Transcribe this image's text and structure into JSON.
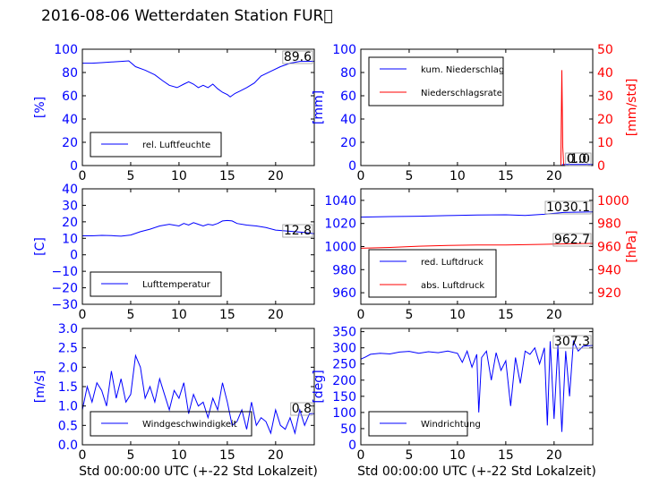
{
  "title": "2016-08-06 Wetterdaten Station FUR\u0000",
  "chart_data": [
    {
      "type": "line",
      "panel": "humidity",
      "ylabel": "[%]",
      "xlim": [
        0,
        24
      ],
      "ylim": [
        0,
        100
      ],
      "xticks": [
        "0",
        "5",
        "10",
        "15",
        "20"
      ],
      "yticks": [
        "0",
        "20",
        "40",
        "60",
        "80",
        "100"
      ],
      "legend_position": "lower-left",
      "last_value_label": "89.6",
      "series": [
        {
          "name": "rel. Luftfeuchte",
          "color": "#0000ff",
          "x": [
            0,
            1,
            2,
            3,
            4,
            4.8,
            5.5,
            6.5,
            7.5,
            8.3,
            9,
            9.8,
            10.5,
            11,
            11.5,
            12,
            12.5,
            13,
            13.5,
            14,
            14.5,
            15,
            15.3,
            15.8,
            16.3,
            17,
            17.8,
            18.5,
            19.5,
            20.5,
            21.5,
            22.5,
            24
          ],
          "values": [
            88,
            88,
            88.5,
            89,
            89.5,
            90,
            85,
            82,
            78,
            73,
            69,
            67,
            70,
            72,
            70,
            67,
            69,
            67,
            70,
            66,
            63,
            61,
            59,
            62,
            64,
            67,
            71,
            77,
            81,
            85,
            88,
            89.5,
            89.6
          ]
        }
      ]
    },
    {
      "type": "line",
      "panel": "precipitation",
      "ylabel": "[mm]",
      "ylabel2": "[mm/std]",
      "xlim": [
        0,
        24
      ],
      "ylim": [
        0,
        100
      ],
      "ylim2": [
        0,
        50
      ],
      "xticks": [
        "0",
        "5",
        "10",
        "15",
        "20"
      ],
      "yticks": [
        "0",
        "20",
        "40",
        "60",
        "80",
        "100"
      ],
      "yticks2": [
        "0",
        "10",
        "20",
        "30",
        "40",
        "50"
      ],
      "legend_position": "upper-left",
      "last_value_labels": [
        "1.0",
        "0.0"
      ],
      "series": [
        {
          "name": "kum. Niederschlag",
          "color": "#0000ff",
          "axis": "left",
          "x": [
            0,
            20.8,
            20.9,
            24
          ],
          "values": [
            0,
            0,
            1,
            1
          ]
        },
        {
          "name": "Niederschlagsrate",
          "color": "#ff0000",
          "axis": "right",
          "x": [
            0,
            20.7,
            20.75,
            20.8,
            20.9,
            21,
            24
          ],
          "values": [
            0,
            0,
            20,
            41,
            8,
            0,
            0
          ]
        }
      ]
    },
    {
      "type": "line",
      "panel": "temperature",
      "ylabel": "[C]",
      "xlim": [
        0,
        24
      ],
      "ylim": [
        -30,
        40
      ],
      "xticks": [
        "0",
        "5",
        "10",
        "15",
        "20"
      ],
      "yticks": [
        "−30",
        "−20",
        "−10",
        "0",
        "10",
        "20",
        "30",
        "40"
      ],
      "legend_position": "lower-left",
      "last_value_label": "12.8",
      "series": [
        {
          "name": "Lufttemperatur",
          "color": "#0000ff",
          "x": [
            0,
            1,
            2,
            3,
            4,
            5,
            6,
            7,
            8,
            9,
            10,
            10.5,
            11,
            11.5,
            12,
            12.5,
            13,
            13.5,
            14,
            14.5,
            15,
            15.5,
            16,
            17,
            18,
            19,
            20,
            21,
            22,
            23,
            24
          ],
          "values": [
            11.5,
            11.5,
            11.8,
            11.6,
            11.3,
            12,
            14,
            15.5,
            17.5,
            18.5,
            17.5,
            19,
            18,
            19.5,
            18.5,
            17.5,
            18.5,
            18,
            19,
            20.5,
            20.8,
            20.5,
            19,
            18,
            17.5,
            16.5,
            15,
            14.5,
            14,
            13.5,
            12.8
          ]
        }
      ]
    },
    {
      "type": "line",
      "panel": "pressure",
      "ylabel2": "[hPa]",
      "xlim": [
        0,
        24
      ],
      "ylim": [
        950,
        1050
      ],
      "ylim2": [
        910,
        1010
      ],
      "xticks": [
        "0",
        "5",
        "10",
        "15",
        "20"
      ],
      "yticks": [
        "960",
        "980",
        "1000",
        "1020",
        "1040"
      ],
      "yticks2": [
        "920",
        "940",
        "960",
        "980",
        "1000"
      ],
      "legend_position": "lower-left",
      "last_value_labels": [
        "1030.1",
        "962.7"
      ],
      "series": [
        {
          "name": "red. Luftdruck",
          "color": "#0000ff",
          "axis": "left",
          "x": [
            0,
            3,
            6,
            9,
            12,
            15,
            17,
            19,
            21,
            24
          ],
          "values": [
            1025.5,
            1026,
            1026.3,
            1026.8,
            1027.3,
            1027.5,
            1027,
            1028,
            1029.5,
            1030.1
          ]
        },
        {
          "name": "abs. Luftdruck",
          "color": "#ff0000",
          "axis": "right",
          "x": [
            0,
            3,
            6,
            9,
            12,
            15,
            17,
            19,
            21,
            24
          ],
          "values": [
            958.5,
            959.2,
            960.3,
            961,
            961.3,
            961.4,
            961.6,
            961.9,
            962.3,
            962.7
          ]
        }
      ]
    },
    {
      "type": "line",
      "panel": "wind-speed",
      "ylabel": "[m/s]",
      "xlim": [
        0,
        24
      ],
      "ylim": [
        0,
        3
      ],
      "xticks": [
        "0",
        "5",
        "10",
        "15",
        "20"
      ],
      "yticks": [
        "0.0",
        "0.5",
        "1.0",
        "1.5",
        "2.0",
        "2.5",
        "3.0"
      ],
      "xlabel": "Std 00:00:00 UTC (+-22 Std Lokalzeit)",
      "legend_position": "lower-left",
      "last_value_label": "0.8",
      "series": [
        {
          "name": "Windgeschwindigkeit",
          "color": "#0000ff",
          "x": [
            0,
            0.5,
            1,
            1.5,
            2,
            2.5,
            3,
            3.5,
            4,
            4.5,
            5,
            5.5,
            6,
            6.5,
            7,
            7.5,
            8,
            8.5,
            9,
            9.5,
            10,
            10.5,
            11,
            11.5,
            12,
            12.5,
            13,
            13.5,
            14,
            14.5,
            15,
            15.5,
            16,
            16.5,
            17,
            17.5,
            18,
            18.5,
            19,
            19.5,
            20,
            20.5,
            21,
            21.5,
            22,
            22.5,
            23,
            23.5,
            24
          ],
          "values": [
            0.9,
            1.5,
            1.1,
            1.6,
            1.4,
            1.0,
            1.9,
            1.2,
            1.7,
            1.1,
            1.3,
            2.3,
            2.0,
            1.2,
            1.5,
            1.1,
            1.7,
            1.3,
            0.9,
            1.4,
            1.2,
            1.6,
            0.8,
            1.3,
            1.0,
            1.1,
            0.7,
            1.2,
            0.9,
            1.6,
            1.1,
            0.5,
            0.6,
            0.9,
            0.4,
            1.1,
            0.5,
            0.7,
            0.6,
            0.3,
            0.9,
            0.5,
            0.4,
            0.7,
            0.3,
            0.9,
            0.5,
            0.8,
            0.8
          ]
        }
      ]
    },
    {
      "type": "line",
      "panel": "wind-direction",
      "ylabel": "[deg]",
      "xlim": [
        0,
        24
      ],
      "ylim": [
        0,
        360
      ],
      "xticks": [
        "0",
        "5",
        "10",
        "15",
        "20"
      ],
      "yticks": [
        "0",
        "50",
        "100",
        "150",
        "200",
        "250",
        "300",
        "350"
      ],
      "xlabel": "Std 00:00:00 UTC (+-22 Std Lokalzeit)",
      "legend_position": "lower-left",
      "last_value_label": "307.3",
      "series": [
        {
          "name": "Windrichtung",
          "color": "#0000ff",
          "x": [
            0,
            0.5,
            1,
            2,
            3,
            4,
            5,
            6,
            7,
            8,
            9,
            10,
            10.5,
            11,
            11.5,
            12,
            12.2,
            12.5,
            13,
            13.5,
            14,
            14.5,
            15,
            15.5,
            16,
            16.5,
            17,
            17.5,
            18,
            18.5,
            19,
            19.3,
            19.6,
            20,
            20.4,
            20.8,
            21.2,
            21.6,
            22,
            22.5,
            23,
            24
          ],
          "values": [
            265,
            272,
            280,
            283,
            281,
            287,
            289,
            283,
            288,
            285,
            290,
            283,
            255,
            290,
            240,
            280,
            100,
            270,
            290,
            200,
            285,
            230,
            260,
            120,
            270,
            190,
            290,
            280,
            300,
            250,
            300,
            60,
            320,
            80,
            310,
            40,
            290,
            150,
            320,
            290,
            305,
            307.3
          ]
        }
      ]
    }
  ]
}
